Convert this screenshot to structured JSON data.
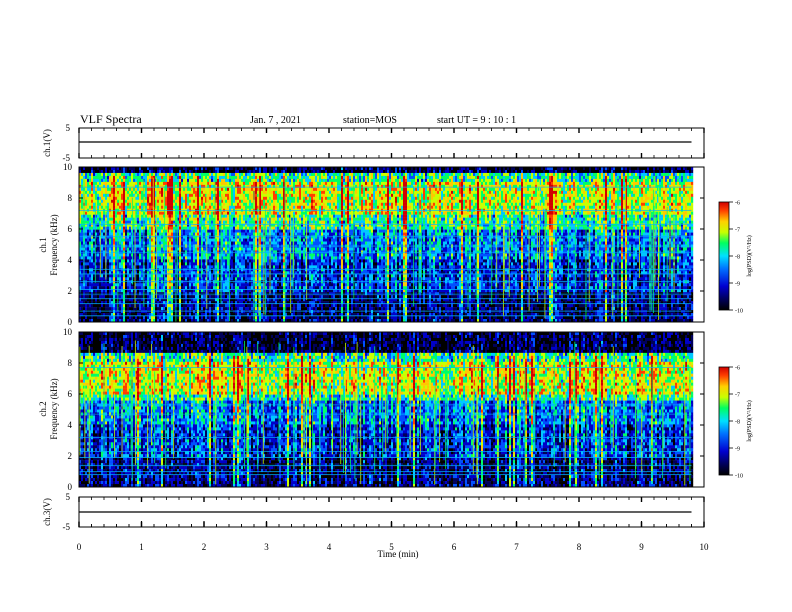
{
  "header": {
    "title": "VLF Spectra",
    "date": "Jan. 7 , 2021",
    "station": "station=MOS",
    "start": "start UT =  9 : 10 : 1"
  },
  "chart_data": [
    {
      "type": "line",
      "panel": "ch1-voltage",
      "ylabel": "ch.1(V)",
      "ylim": [
        -5,
        5
      ],
      "yticks": [
        "5",
        "-5"
      ],
      "xlim": [
        0,
        10
      ],
      "series": [
        {
          "x": [
            0,
            9.8
          ],
          "y": [
            0,
            0
          ]
        }
      ]
    },
    {
      "type": "heatmap",
      "panel": "ch1-spectrogram",
      "ylabel": "ch.1\nFrequency (kHz)",
      "ylabel_lines": [
        "ch.1",
        "Frequency (kHz)"
      ],
      "ylim": [
        0,
        10
      ],
      "yticks": [
        "0",
        "2",
        "4",
        "6",
        "8",
        "10"
      ],
      "xlim": [
        0,
        10
      ],
      "data_end_x": 9.8,
      "colorbar": {
        "label": "log(PSD)(V²/Hz)",
        "range": [
          -10,
          -6
        ],
        "ticks": [
          "-6",
          "-7",
          "-8",
          "-9",
          "-10"
        ]
      },
      "intense_band_khz": [
        6.0,
        9.5
      ],
      "peak_band_khz": [
        7.0,
        9.0
      ],
      "horizontal_lines_khz": [
        0.4,
        0.7,
        1.2,
        1.5,
        1.8,
        2.1,
        2.6,
        3.1,
        3.4,
        4.5,
        4.9,
        5.5,
        6.3,
        7.2,
        8.7
      ]
    },
    {
      "type": "heatmap",
      "panel": "ch2-spectrogram",
      "ylabel": "ch.2\nFrequency (kHz)",
      "ylabel_lines": [
        "ch.2",
        "Frequency (kHz)"
      ],
      "ylim": [
        0,
        10
      ],
      "yticks": [
        "0",
        "2",
        "4",
        "6",
        "8",
        "10"
      ],
      "xlim": [
        0,
        10
      ],
      "data_end_x": 9.8,
      "colorbar": {
        "label": "log(PSD)(V²/Hz)",
        "range": [
          -10,
          -6
        ],
        "ticks": [
          "-6",
          "-7",
          "-8",
          "-9",
          "-10"
        ]
      },
      "intense_band_khz": [
        5.5,
        8.5
      ],
      "peak_band_khz": [
        6.0,
        8.0
      ],
      "horizontal_lines_khz": [
        0.8,
        1.0,
        1.4,
        1.9,
        2.3,
        3.2,
        4.7,
        5.3,
        7.7
      ]
    },
    {
      "type": "line",
      "panel": "ch3-voltage",
      "ylabel": "ch.3(V)",
      "ylim": [
        -5,
        5
      ],
      "yticks": [
        "5",
        "-5"
      ],
      "xlim": [
        0,
        10
      ],
      "series": [
        {
          "x": [
            0,
            9.8
          ],
          "y": [
            0,
            0
          ]
        }
      ]
    }
  ],
  "xaxis": {
    "label": "Time (min)",
    "ticks": [
      "0",
      "1",
      "2",
      "3",
      "4",
      "5",
      "6",
      "7",
      "8",
      "9",
      "10"
    ]
  },
  "colors": {
    "colormap": [
      "#000000",
      "#00005a",
      "#0000c8",
      "#0050ff",
      "#00c8ff",
      "#00ff64",
      "#c8ff00",
      "#ffc800",
      "#ff3c00",
      "#d20000"
    ],
    "trace": "#000000"
  }
}
